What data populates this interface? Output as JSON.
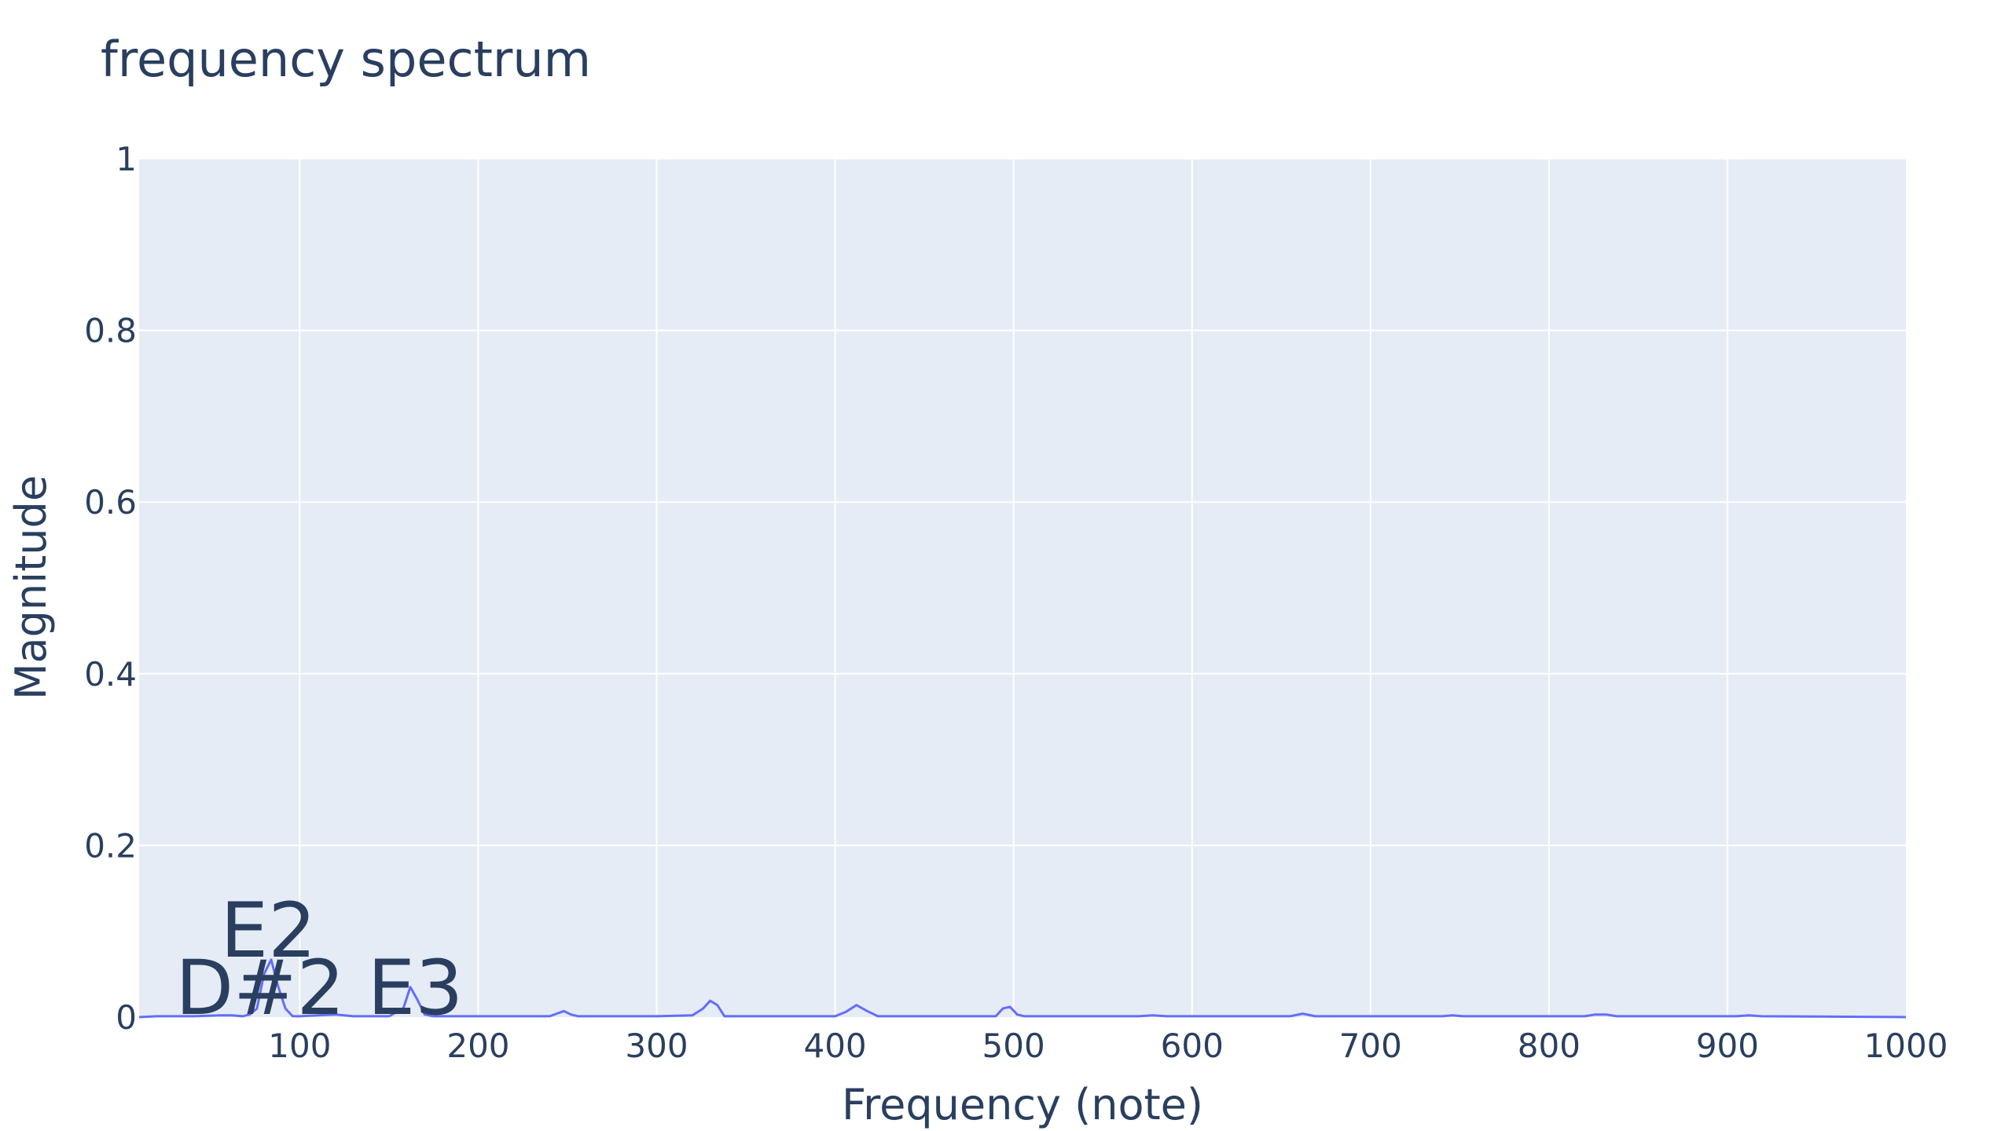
{
  "chart_data": {
    "type": "line",
    "title": "frequency spectrum",
    "xlabel": "Frequency (note)",
    "ylabel": "Magnitude",
    "xlim": [
      10,
      1000
    ],
    "ylim": [
      0,
      1
    ],
    "x_ticks": [
      {
        "value": 100,
        "label": "100"
      },
      {
        "value": 200,
        "label": "200"
      },
      {
        "value": 300,
        "label": "300"
      },
      {
        "value": 400,
        "label": "400"
      },
      {
        "value": 500,
        "label": "500"
      },
      {
        "value": 600,
        "label": "600"
      },
      {
        "value": 700,
        "label": "700"
      },
      {
        "value": 800,
        "label": "800"
      },
      {
        "value": 900,
        "label": "900"
      },
      {
        "value": 1000,
        "label": "1000"
      }
    ],
    "y_ticks": [
      {
        "value": 0,
        "label": "0"
      },
      {
        "value": 0.2,
        "label": "0.2"
      },
      {
        "value": 0.4,
        "label": "0.4"
      },
      {
        "value": 0.6,
        "label": "0.6"
      },
      {
        "value": 0.8,
        "label": "0.8"
      },
      {
        "value": 1,
        "label": "1"
      }
    ],
    "grid": true,
    "plot_background": "#e5ecf6",
    "series": [
      {
        "color": "#636efa",
        "x": [
          10,
          20,
          40,
          55,
          62,
          68,
          72,
          76,
          80,
          84,
          88,
          92,
          96,
          100,
          110,
          120,
          125,
          130,
          150,
          158,
          162,
          166,
          170,
          175,
          200,
          240,
          244,
          248,
          252,
          256,
          300,
          320,
          326,
          330,
          334,
          338,
          400,
          406,
          412,
          418,
          424,
          490,
          494,
          498,
          502,
          506,
          570,
          578,
          586,
          655,
          662,
          669,
          740,
          746,
          752,
          820,
          826,
          832,
          838,
          905,
          912,
          919,
          1000
        ],
        "y": [
          0.0,
          0.001,
          0.001,
          0.002,
          0.002,
          0.001,
          0.003,
          0.01,
          0.05,
          0.067,
          0.035,
          0.01,
          0.001,
          0.001,
          0.002,
          0.003,
          0.002,
          0.001,
          0.001,
          0.01,
          0.035,
          0.02,
          0.003,
          0.001,
          0.001,
          0.001,
          0.004,
          0.007,
          0.003,
          0.001,
          0.001,
          0.002,
          0.01,
          0.019,
          0.014,
          0.001,
          0.001,
          0.006,
          0.014,
          0.007,
          0.001,
          0.001,
          0.01,
          0.012,
          0.003,
          0.001,
          0.001,
          0.002,
          0.001,
          0.001,
          0.004,
          0.001,
          0.001,
          0.002,
          0.001,
          0.001,
          0.003,
          0.003,
          0.001,
          0.001,
          0.002,
          0.001,
          0.0
        ]
      }
    ],
    "annotations": [
      {
        "text": "D#2",
        "x": 77.8,
        "y": 0.0
      },
      {
        "text": "E2",
        "x": 82.4,
        "y": 0.067
      },
      {
        "text": "E3",
        "x": 164.8,
        "y": 0.0
      }
    ]
  }
}
